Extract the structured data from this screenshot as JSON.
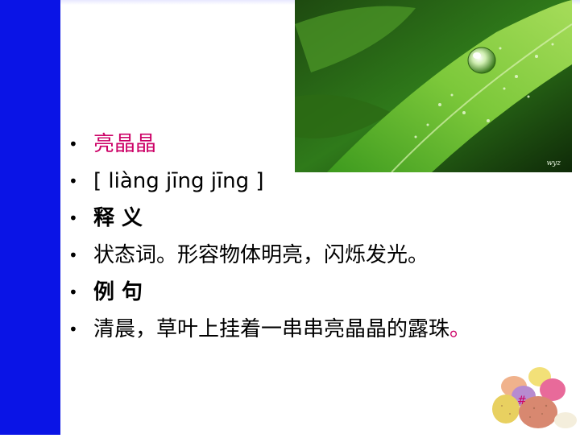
{
  "slide": {
    "bullets": [
      {
        "text": "亮晶晶"
      },
      {
        "text": "[ liàng jīng jīng ]"
      },
      {
        "text": "释 义"
      },
      {
        "text": "状态词。形容物体明亮，闪烁发光。"
      },
      {
        "text": "例 句"
      },
      {
        "text": "清晨，草叶上挂着一串串亮晶晶的露珠",
        "trail": "。"
      }
    ],
    "bullet_symbol": "•",
    "watermark": "wyz",
    "page_number": "#"
  },
  "colors": {
    "left_bar": "#0a14e6",
    "accent": "#cc0066",
    "text": "#000000"
  },
  "images": {
    "photo": "green-leaf-with-water-droplet",
    "decoration": "pastel-eggs"
  }
}
